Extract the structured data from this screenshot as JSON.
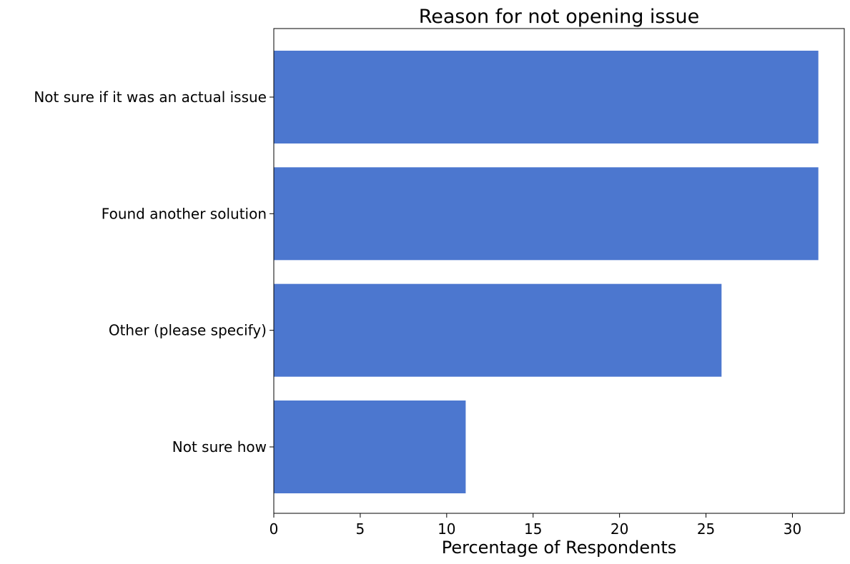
{
  "chart_data": {
    "type": "bar",
    "orientation": "horizontal",
    "title": "Reason for not opening issue",
    "xlabel": "Percentage of Respondents",
    "ylabel": "",
    "categories": [
      "Not sure if it was an actual issue",
      "Found another solution",
      "Other (please specify)",
      "Not sure how"
    ],
    "values": [
      31.5,
      31.5,
      25.9,
      11.1
    ],
    "xlim": [
      0,
      33
    ],
    "xticks": [
      0,
      5,
      10,
      15,
      20,
      25,
      30
    ],
    "grid": false,
    "bar_color": "#4c77cf"
  }
}
